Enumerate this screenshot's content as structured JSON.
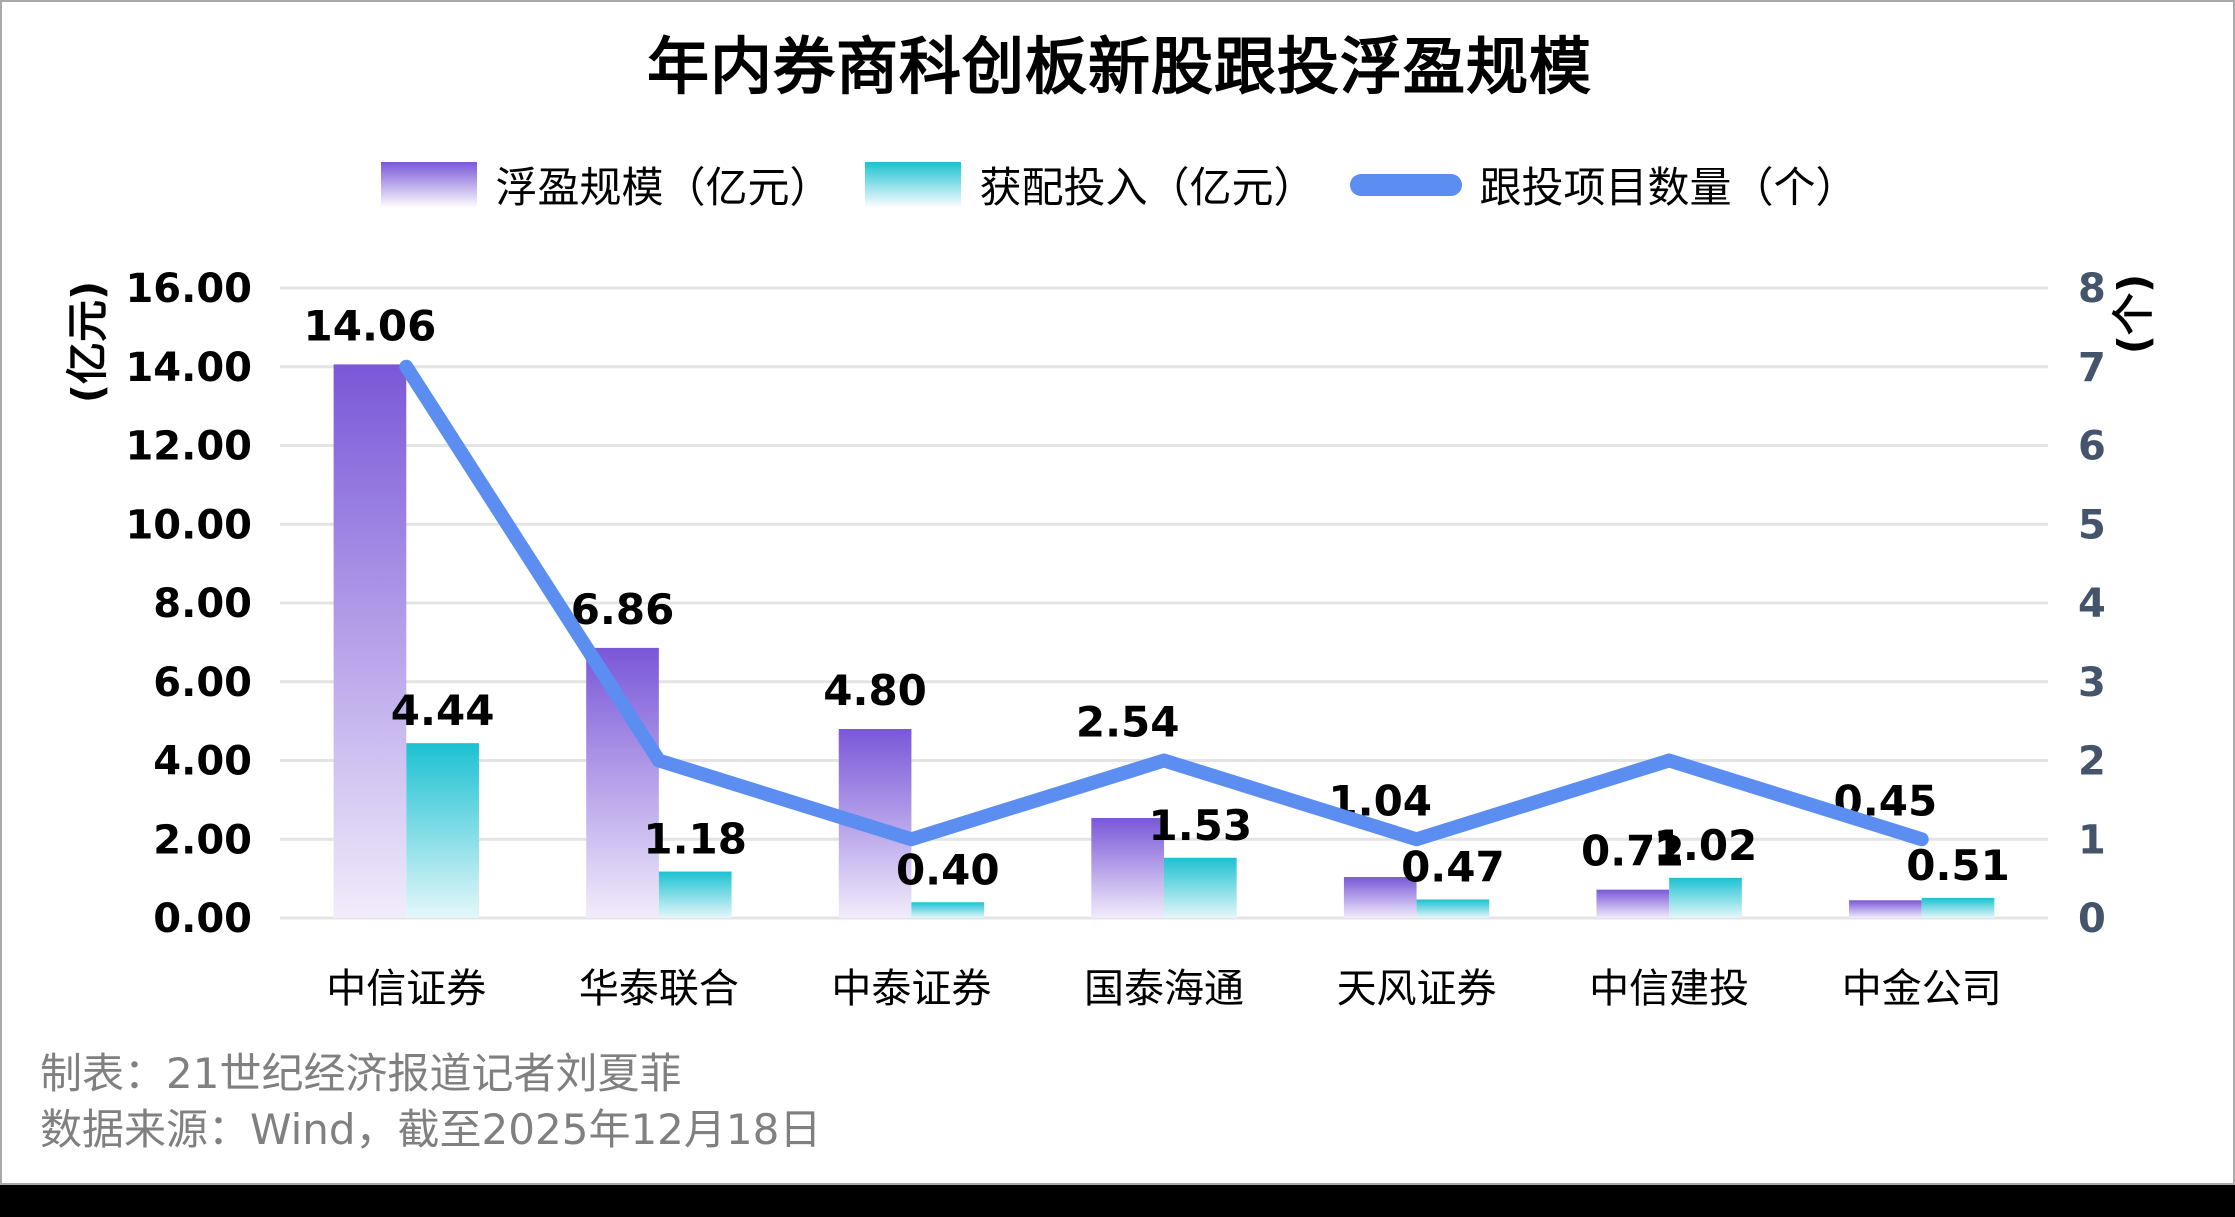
{
  "chart_data": {
    "type": "bar",
    "title": "年内券商科创板新股跟投浮盈规模",
    "categories": [
      "中信证券",
      "华泰联合",
      "中泰证券",
      "国泰海通",
      "天风证券",
      "中信建投",
      "中金公司"
    ],
    "series": [
      {
        "name": "浮盈规模（亿元）",
        "kind": "bar",
        "axis": "left",
        "color_top": "#7A57D8",
        "color_bottom": "#F1ECFB",
        "values": [
          14.06,
          6.86,
          4.8,
          2.54,
          1.04,
          0.72,
          0.45
        ]
      },
      {
        "name": "获配投入（亿元）",
        "kind": "bar",
        "axis": "left",
        "color_top": "#1CC1D2",
        "color_bottom": "#E4F7F9",
        "values": [
          4.44,
          1.18,
          0.4,
          1.53,
          0.47,
          1.02,
          0.51
        ]
      },
      {
        "name": "跟投项目数量（个）",
        "kind": "line",
        "axis": "right",
        "color": "#5C8DF1",
        "values": [
          7,
          2,
          1,
          2,
          1,
          2,
          1
        ]
      }
    ],
    "left_axis": {
      "label": "(亿元)",
      "min": 0,
      "max": 16,
      "step": 2,
      "decimals": 2
    },
    "right_axis": {
      "label": "(个)",
      "min": 0,
      "max": 8,
      "step": 1,
      "decimals": 0
    },
    "grid": true,
    "gridline_color": "#E4E4E4",
    "legend_position": "top",
    "label_decimals": 2
  },
  "footer": {
    "line1": "制表：21世纪经济报道记者刘夏菲",
    "line2": "数据来源：Wind，截至2025年12月18日"
  }
}
